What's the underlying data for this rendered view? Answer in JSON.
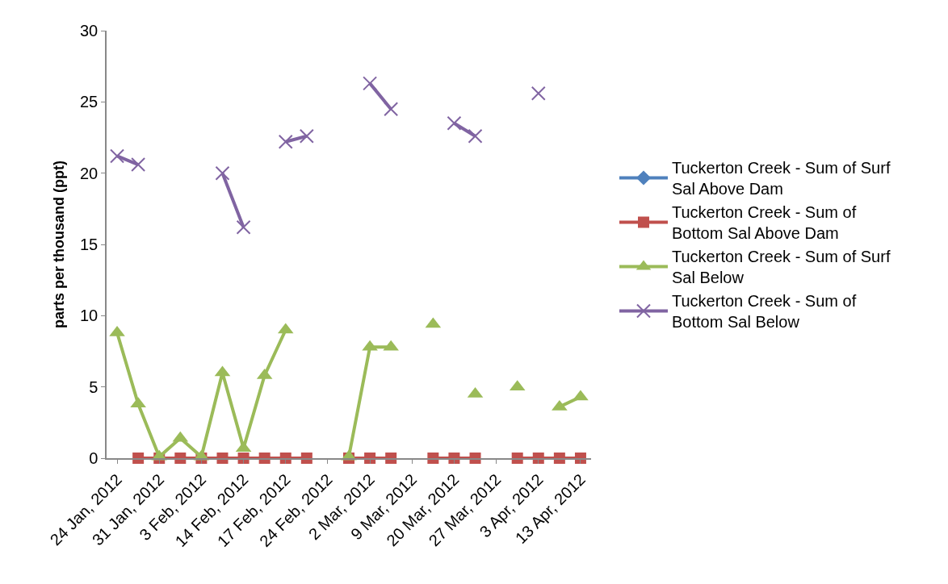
{
  "chart_data": {
    "type": "line",
    "ylabel": "parts per thousand (ppt)",
    "categories": [
      "24 Jan, 2012",
      null,
      "31 Jan, 2012",
      null,
      "3 Feb, 2012",
      null,
      "14 Feb, 2012",
      null,
      "17 Feb, 2012",
      null,
      "24 Feb, 2012",
      null,
      "2 Mar, 2012",
      null,
      "9 Mar, 2012",
      null,
      "20 Mar, 2012",
      null,
      "27 Mar, 2012",
      null,
      "3 Apr, 2012",
      null,
      "13 Apr, 2012"
    ],
    "ylim": [
      0,
      30
    ],
    "yticks": [
      0,
      5,
      10,
      15,
      20,
      25,
      30
    ],
    "legend": "right",
    "series": [
      {
        "name": "Tuckerton Creek - Sum of Surf Sal Above Dam",
        "color": "#4f81bd",
        "marker": "diamond",
        "values": [
          null,
          null,
          null,
          null,
          null,
          null,
          null,
          null,
          null,
          null,
          null,
          null,
          null,
          null,
          null,
          null,
          null,
          null,
          null,
          null,
          null,
          null,
          null
        ]
      },
      {
        "name": "Tuckerton Creek - Sum of Bottom Sal Above Dam",
        "color": "#c0504d",
        "marker": "square",
        "values": [
          null,
          0,
          0,
          0,
          0,
          0,
          0,
          0,
          0,
          0,
          null,
          0,
          0,
          0,
          null,
          0,
          0,
          0,
          null,
          0,
          0,
          0,
          0
        ]
      },
      {
        "name": "Tuckerton Creek - Sum of Surf Sal Below",
        "color": "#9bbb59",
        "marker": "triangle",
        "values": [
          8.8,
          3.8,
          0.1,
          1.4,
          0.1,
          6.0,
          0.7,
          5.8,
          9.0,
          null,
          null,
          0.1,
          7.8,
          7.8,
          null,
          9.4,
          null,
          4.5,
          null,
          5.0,
          null,
          3.6,
          4.3
        ]
      },
      {
        "name": "Tuckerton Creek - Sum of Bottom Sal Below",
        "color": "#8064a2",
        "marker": "cross",
        "values": [
          21.2,
          20.6,
          null,
          null,
          null,
          20.0,
          16.2,
          null,
          22.2,
          22.6,
          null,
          null,
          26.3,
          24.5,
          null,
          null,
          23.5,
          22.6,
          null,
          null,
          25.6,
          null,
          null
        ]
      }
    ]
  }
}
